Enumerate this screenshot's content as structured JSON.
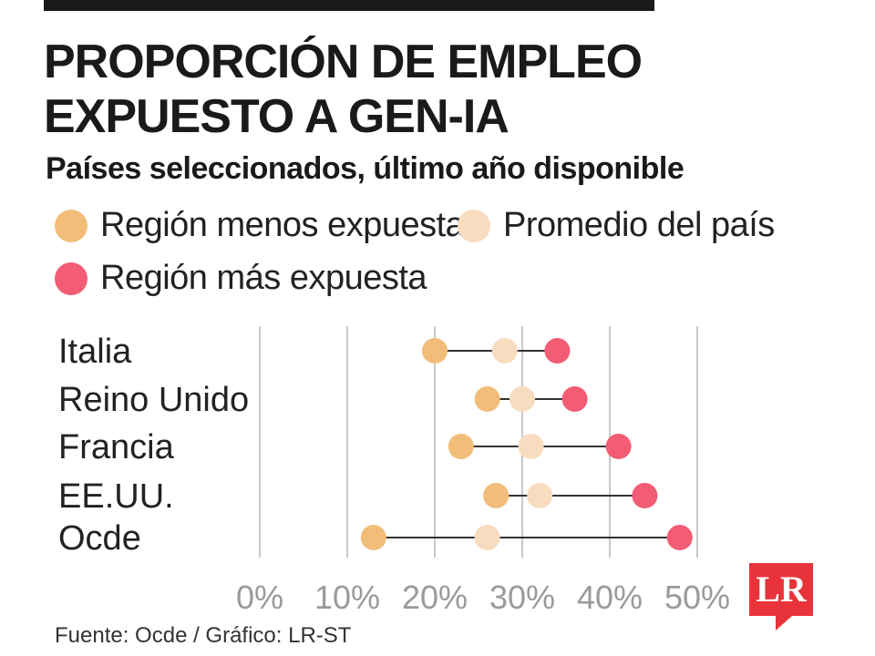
{
  "header": {
    "title_line1": "PROPORCIÓN DE EMPLEO",
    "title_line2": "EXPUESTO A GEN-IA",
    "subtitle": "Países seleccionados, último año disponible"
  },
  "legend": [
    {
      "label": "Región menos expuesta",
      "color": "#f2bd79"
    },
    {
      "label": "Promedio del país",
      "color": "#f8dcc0"
    },
    {
      "label": "Región más expuesta",
      "color": "#f25d75"
    }
  ],
  "chart_data": {
    "type": "dot-range",
    "categories": [
      "Italia",
      "Reino Unido",
      "Francia",
      "EE.UU.",
      "Ocde"
    ],
    "series": [
      {
        "name": "Región menos expuesta",
        "color": "#f2bd79",
        "values": [
          20,
          26,
          23,
          27,
          13
        ]
      },
      {
        "name": "Promedio del país",
        "color": "#f8dcc0",
        "values": [
          28,
          30,
          31,
          32,
          26
        ]
      },
      {
        "name": "Región más expuesta",
        "color": "#f25d75",
        "values": [
          34,
          36,
          41,
          44,
          48
        ]
      }
    ],
    "x_ticks": [
      "0%",
      "10%",
      "20%",
      "30%",
      "40%",
      "50%"
    ],
    "xlim": [
      0,
      50
    ],
    "grid": true,
    "legend_position": "top"
  },
  "footer": {
    "source": "Fuente: Ocde / Gráfico: LR-ST",
    "logo_text": "LR"
  }
}
